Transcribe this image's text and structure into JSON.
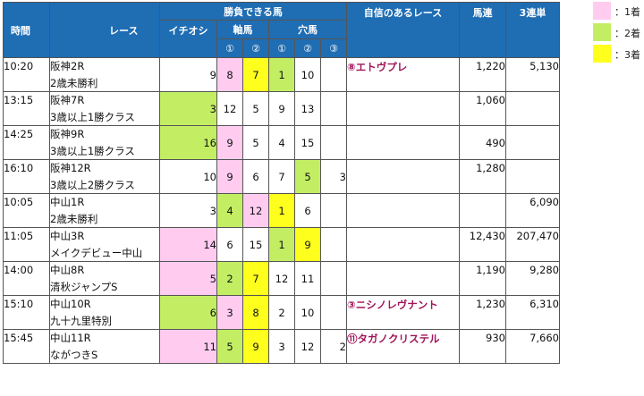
{
  "header": {
    "time": "時間",
    "race": "レース",
    "horses": "勝負できる馬",
    "confident": "自信のあるレース",
    "umaren": "馬連",
    "sanrentan": "3連単",
    "ichioshi": "イチオシ",
    "jikuba": "軸馬",
    "anaba": "穴馬",
    "c1": "①",
    "c2": "②",
    "c3": "③"
  },
  "legend": [
    {
      "label": "：1着",
      "color": "#ffccf0"
    },
    {
      "label": "：2着",
      "color": "#c3ee63"
    },
    {
      "label": "：3着",
      "color": "#ffff1e"
    }
  ],
  "rows": [
    {
      "time": "10:20",
      "race": "阪神2R",
      "cls": "2歳未勝利",
      "ichioshi": "9",
      "jiku1": "8",
      "jiku2": "7",
      "ana1": "1",
      "ana2": "10",
      "ana3": "",
      "conf": "⑧エトヴプレ",
      "umaren": "1,220",
      "sanrentan": "5,130"
    },
    {
      "time": "13:15",
      "race": "阪神7R",
      "cls": "3歳以上1勝クラス",
      "ichioshi": "3",
      "jiku1": "12",
      "jiku2": "5",
      "ana1": "9",
      "ana2": "13",
      "ana3": "",
      "conf": "",
      "umaren": "1,060",
      "sanrentan": ""
    },
    {
      "time": "14:25",
      "race": "阪神9R",
      "cls": "3歳以上1勝クラス",
      "ichioshi": "16",
      "jiku1": "9",
      "jiku2": "5",
      "ana1": "4",
      "ana2": "15",
      "ana3": "",
      "conf": "",
      "umaren": "490",
      "sanrentan": ""
    },
    {
      "time": "16:10",
      "race": "阪神12R",
      "cls": "3歳以上2勝クラス",
      "ichioshi": "10",
      "jiku1": "9",
      "jiku2": "6",
      "ana1": "7",
      "ana2": "5",
      "ana3": "3",
      "conf": "",
      "umaren": "1,280",
      "sanrentan": ""
    },
    {
      "time": "10:05",
      "race": "中山1R",
      "cls": "2歳未勝利",
      "ichioshi": "3",
      "jiku1": "4",
      "jiku2": "12",
      "ana1": "1",
      "ana2": "6",
      "ana3": "",
      "conf": "",
      "umaren": "",
      "sanrentan": "6,090"
    },
    {
      "time": "11:05",
      "race": "中山3R",
      "cls": "メイクデビュー中山",
      "ichioshi": "14",
      "jiku1": "6",
      "jiku2": "15",
      "ana1": "1",
      "ana2": "9",
      "ana3": "",
      "conf": "",
      "umaren": "12,430",
      "sanrentan": "207,470"
    },
    {
      "time": "14:00",
      "race": "中山8R",
      "cls": "清秋ジャンプS",
      "ichioshi": "5",
      "jiku1": "2",
      "jiku2": "7",
      "ana1": "12",
      "ana2": "11",
      "ana3": "",
      "conf": "",
      "umaren": "1,190",
      "sanrentan": "9,280"
    },
    {
      "time": "15:10",
      "race": "中山10R",
      "cls": "九十九里特別",
      "ichioshi": "6",
      "jiku1": "3",
      "jiku2": "8",
      "ana1": "2",
      "ana2": "10",
      "ana3": "",
      "conf": "③ニシノレヴナント",
      "umaren": "1,230",
      "sanrentan": "6,310"
    },
    {
      "time": "15:45",
      "race": "中山11R",
      "cls": "ながつきS",
      "ichioshi": "11",
      "jiku1": "5",
      "jiku2": "9",
      "ana1": "3",
      "ana2": "12",
      "ana3": "2",
      "conf": "⑪タガノクリステル",
      "umaren": "930",
      "sanrentan": "7,660"
    }
  ]
}
